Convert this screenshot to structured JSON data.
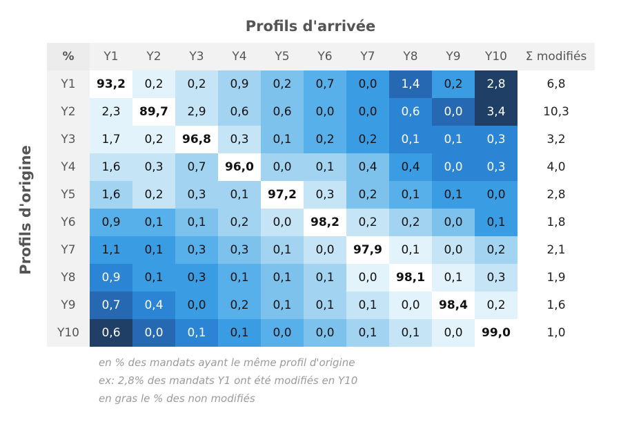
{
  "chart_data": {
    "type": "heatmap",
    "title": "Profils d'arrivée",
    "ylabel": "Profils d'origine",
    "corner_label": "%",
    "sum_label": "Σ modifiés",
    "columns": [
      "Y1",
      "Y2",
      "Y3",
      "Y4",
      "Y5",
      "Y6",
      "Y7",
      "Y8",
      "Y9",
      "Y10"
    ],
    "rows": [
      "Y1",
      "Y2",
      "Y3",
      "Y4",
      "Y5",
      "Y6",
      "Y7",
      "Y8",
      "Y9",
      "Y10"
    ],
    "values": [
      [
        "93,2",
        "0,2",
        "0,2",
        "0,9",
        "0,2",
        "0,7",
        "0,0",
        "1,4",
        "0,2",
        "2,8"
      ],
      [
        "2,3",
        "89,7",
        "2,9",
        "0,6",
        "0,6",
        "0,0",
        "0,0",
        "0,6",
        "0,0",
        "3,4"
      ],
      [
        "1,7",
        "0,2",
        "96,8",
        "0,3",
        "0,1",
        "0,2",
        "0,2",
        "0,1",
        "0,1",
        "0,3"
      ],
      [
        "1,6",
        "0,3",
        "0,7",
        "96,0",
        "0,0",
        "0,1",
        "0,4",
        "0,4",
        "0,0",
        "0,3"
      ],
      [
        "1,6",
        "0,2",
        "0,3",
        "0,1",
        "97,2",
        "0,3",
        "0,2",
        "0,1",
        "0,1",
        "0,0"
      ],
      [
        "0,9",
        "0,1",
        "0,1",
        "0,2",
        "0,0",
        "98,2",
        "0,2",
        "0,2",
        "0,0",
        "0,1"
      ],
      [
        "1,1",
        "0,1",
        "0,3",
        "0,3",
        "0,1",
        "0,0",
        "97,9",
        "0,1",
        "0,0",
        "0,2"
      ],
      [
        "0,9",
        "0,1",
        "0,3",
        "0,1",
        "0,1",
        "0,1",
        "0,0",
        "98,1",
        "0,1",
        "0,3"
      ],
      [
        "0,7",
        "0,4",
        "0,0",
        "0,2",
        "0,1",
        "0,1",
        "0,1",
        "0,0",
        "98,4",
        "0,2"
      ],
      [
        "0,6",
        "0,0",
        "0,1",
        "0,1",
        "0,0",
        "0,0",
        "0,1",
        "0,1",
        "0,0",
        "99,0"
      ]
    ],
    "sums": [
      "6,8",
      "10,3",
      "3,2",
      "4,0",
      "2,8",
      "1,8",
      "2,1",
      "1,9",
      "1,6",
      "1,0"
    ],
    "levels": [
      [
        0,
        1,
        2,
        3,
        4,
        5,
        6,
        8,
        6,
        9
      ],
      [
        1,
        0,
        2,
        3,
        4,
        5,
        6,
        7,
        8,
        9
      ],
      [
        1,
        1,
        0,
        2,
        4,
        5,
        6,
        7,
        7,
        7
      ],
      [
        2,
        2,
        3,
        0,
        3,
        3,
        4,
        6,
        7,
        7
      ],
      [
        3,
        2,
        3,
        3,
        0,
        2,
        4,
        5,
        6,
        6
      ],
      [
        5,
        5,
        4,
        3,
        2,
        0,
        2,
        3,
        4,
        6
      ],
      [
        6,
        6,
        5,
        4,
        3,
        2,
        0,
        1,
        2,
        3
      ],
      [
        7,
        6,
        6,
        5,
        4,
        3,
        1,
        0,
        1,
        2
      ],
      [
        8,
        7,
        6,
        5,
        4,
        3,
        2,
        1,
        0,
        1
      ],
      [
        9,
        8,
        7,
        6,
        5,
        4,
        3,
        2,
        1,
        0
      ]
    ],
    "palette": [
      "#ffffff",
      "#e3f3fb",
      "#c5e5f6",
      "#a2d4f2",
      "#7cc2ed",
      "#57b0ea",
      "#3a9de4",
      "#2b85d4",
      "#2768b3",
      "#1f3f66"
    ],
    "text_dark": "#111111",
    "text_light": "#ffffff"
  },
  "footnotes": [
    "en % des mandats ayant le même profil d'origine",
    "ex: 2,8% des mandats Y1 ont été modifiés en Y10",
    "en gras le % des non modifiés"
  ]
}
